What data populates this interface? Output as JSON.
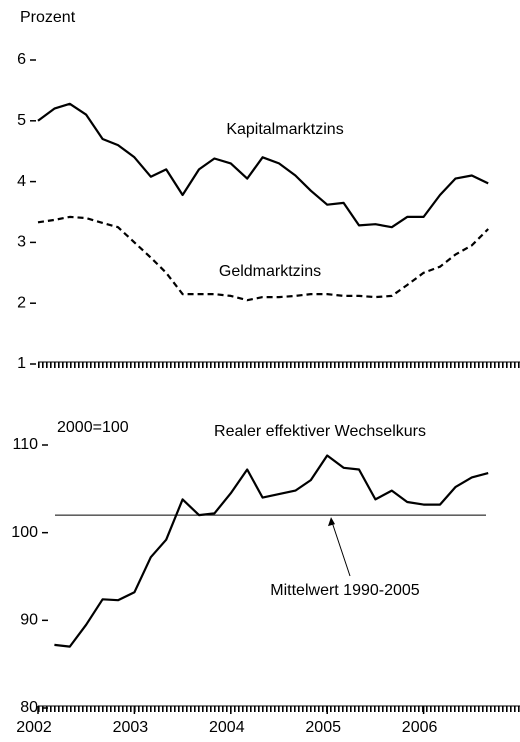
{
  "chart_data": [
    {
      "type": "line",
      "ylabel": "Prozent",
      "x": [
        2002.0,
        2002.17,
        2002.33,
        2002.5,
        2002.67,
        2002.83,
        2003.0,
        2003.17,
        2003.33,
        2003.5,
        2003.67,
        2003.83,
        2004.0,
        2004.17,
        2004.33,
        2004.5,
        2004.67,
        2004.83,
        2005.0,
        2005.17,
        2005.33,
        2005.5,
        2005.67,
        2005.83,
        2006.0,
        2006.17,
        2006.33,
        2006.5,
        2006.67
      ],
      "series": [
        {
          "name": "Kapitalmarktzins",
          "color": "#000000",
          "line_style": "solid",
          "values": [
            5.0,
            5.2,
            5.28,
            5.1,
            4.7,
            4.6,
            4.4,
            4.08,
            4.2,
            3.78,
            4.2,
            4.38,
            4.3,
            4.05,
            4.4,
            4.3,
            4.1,
            3.85,
            3.62,
            3.65,
            3.28,
            3.3,
            3.25,
            3.42,
            3.42,
            3.78,
            4.05,
            4.1,
            3.97
          ]
        },
        {
          "name": "Geldmarktzins",
          "color": "#000000",
          "line_style": "dashed",
          "values": [
            3.33,
            3.37,
            3.42,
            3.4,
            3.32,
            3.25,
            3.0,
            2.75,
            2.5,
            2.15,
            2.15,
            2.15,
            2.12,
            2.05,
            2.1,
            2.1,
            2.12,
            2.15,
            2.15,
            2.12,
            2.12,
            2.1,
            2.12,
            2.3,
            2.5,
            2.6,
            2.8,
            2.95,
            3.22
          ]
        }
      ],
      "xlim": [
        2002,
        2007
      ],
      "ylim": [
        1,
        6
      ],
      "yticks": [
        1,
        2,
        3,
        4,
        5,
        6
      ]
    },
    {
      "type": "line",
      "ylabel": "2000=100",
      "x": [
        2002.17,
        2002.33,
        2002.5,
        2002.67,
        2002.83,
        2003.0,
        2003.17,
        2003.33,
        2003.5,
        2003.67,
        2003.83,
        2004.0,
        2004.17,
        2004.33,
        2004.5,
        2004.67,
        2004.83,
        2005.0,
        2005.17,
        2005.33,
        2005.5,
        2005.67,
        2005.83,
        2006.0,
        2006.17,
        2006.33,
        2006.5,
        2006.67
      ],
      "series": [
        {
          "name": "Realer effektiver Wechselkurs",
          "color": "#000000",
          "line_style": "solid",
          "values": [
            87.2,
            87.0,
            89.5,
            92.4,
            92.3,
            93.2,
            97.2,
            99.2,
            103.8,
            102.0,
            102.2,
            104.5,
            107.2,
            104.0,
            104.4,
            104.8,
            106.0,
            108.8,
            107.4,
            107.2,
            103.8,
            104.8,
            103.5,
            103.2,
            103.2,
            105.2,
            106.3,
            106.8
          ]
        }
      ],
      "reference_line": {
        "value": 102,
        "label": "Mittelwert 1990-2005"
      },
      "xlim": [
        2002,
        2007
      ],
      "xticks": [
        2002,
        2003,
        2004,
        2005,
        2006
      ],
      "ylim": [
        80,
        110
      ],
      "yticks": [
        80,
        90,
        100,
        110
      ]
    }
  ]
}
